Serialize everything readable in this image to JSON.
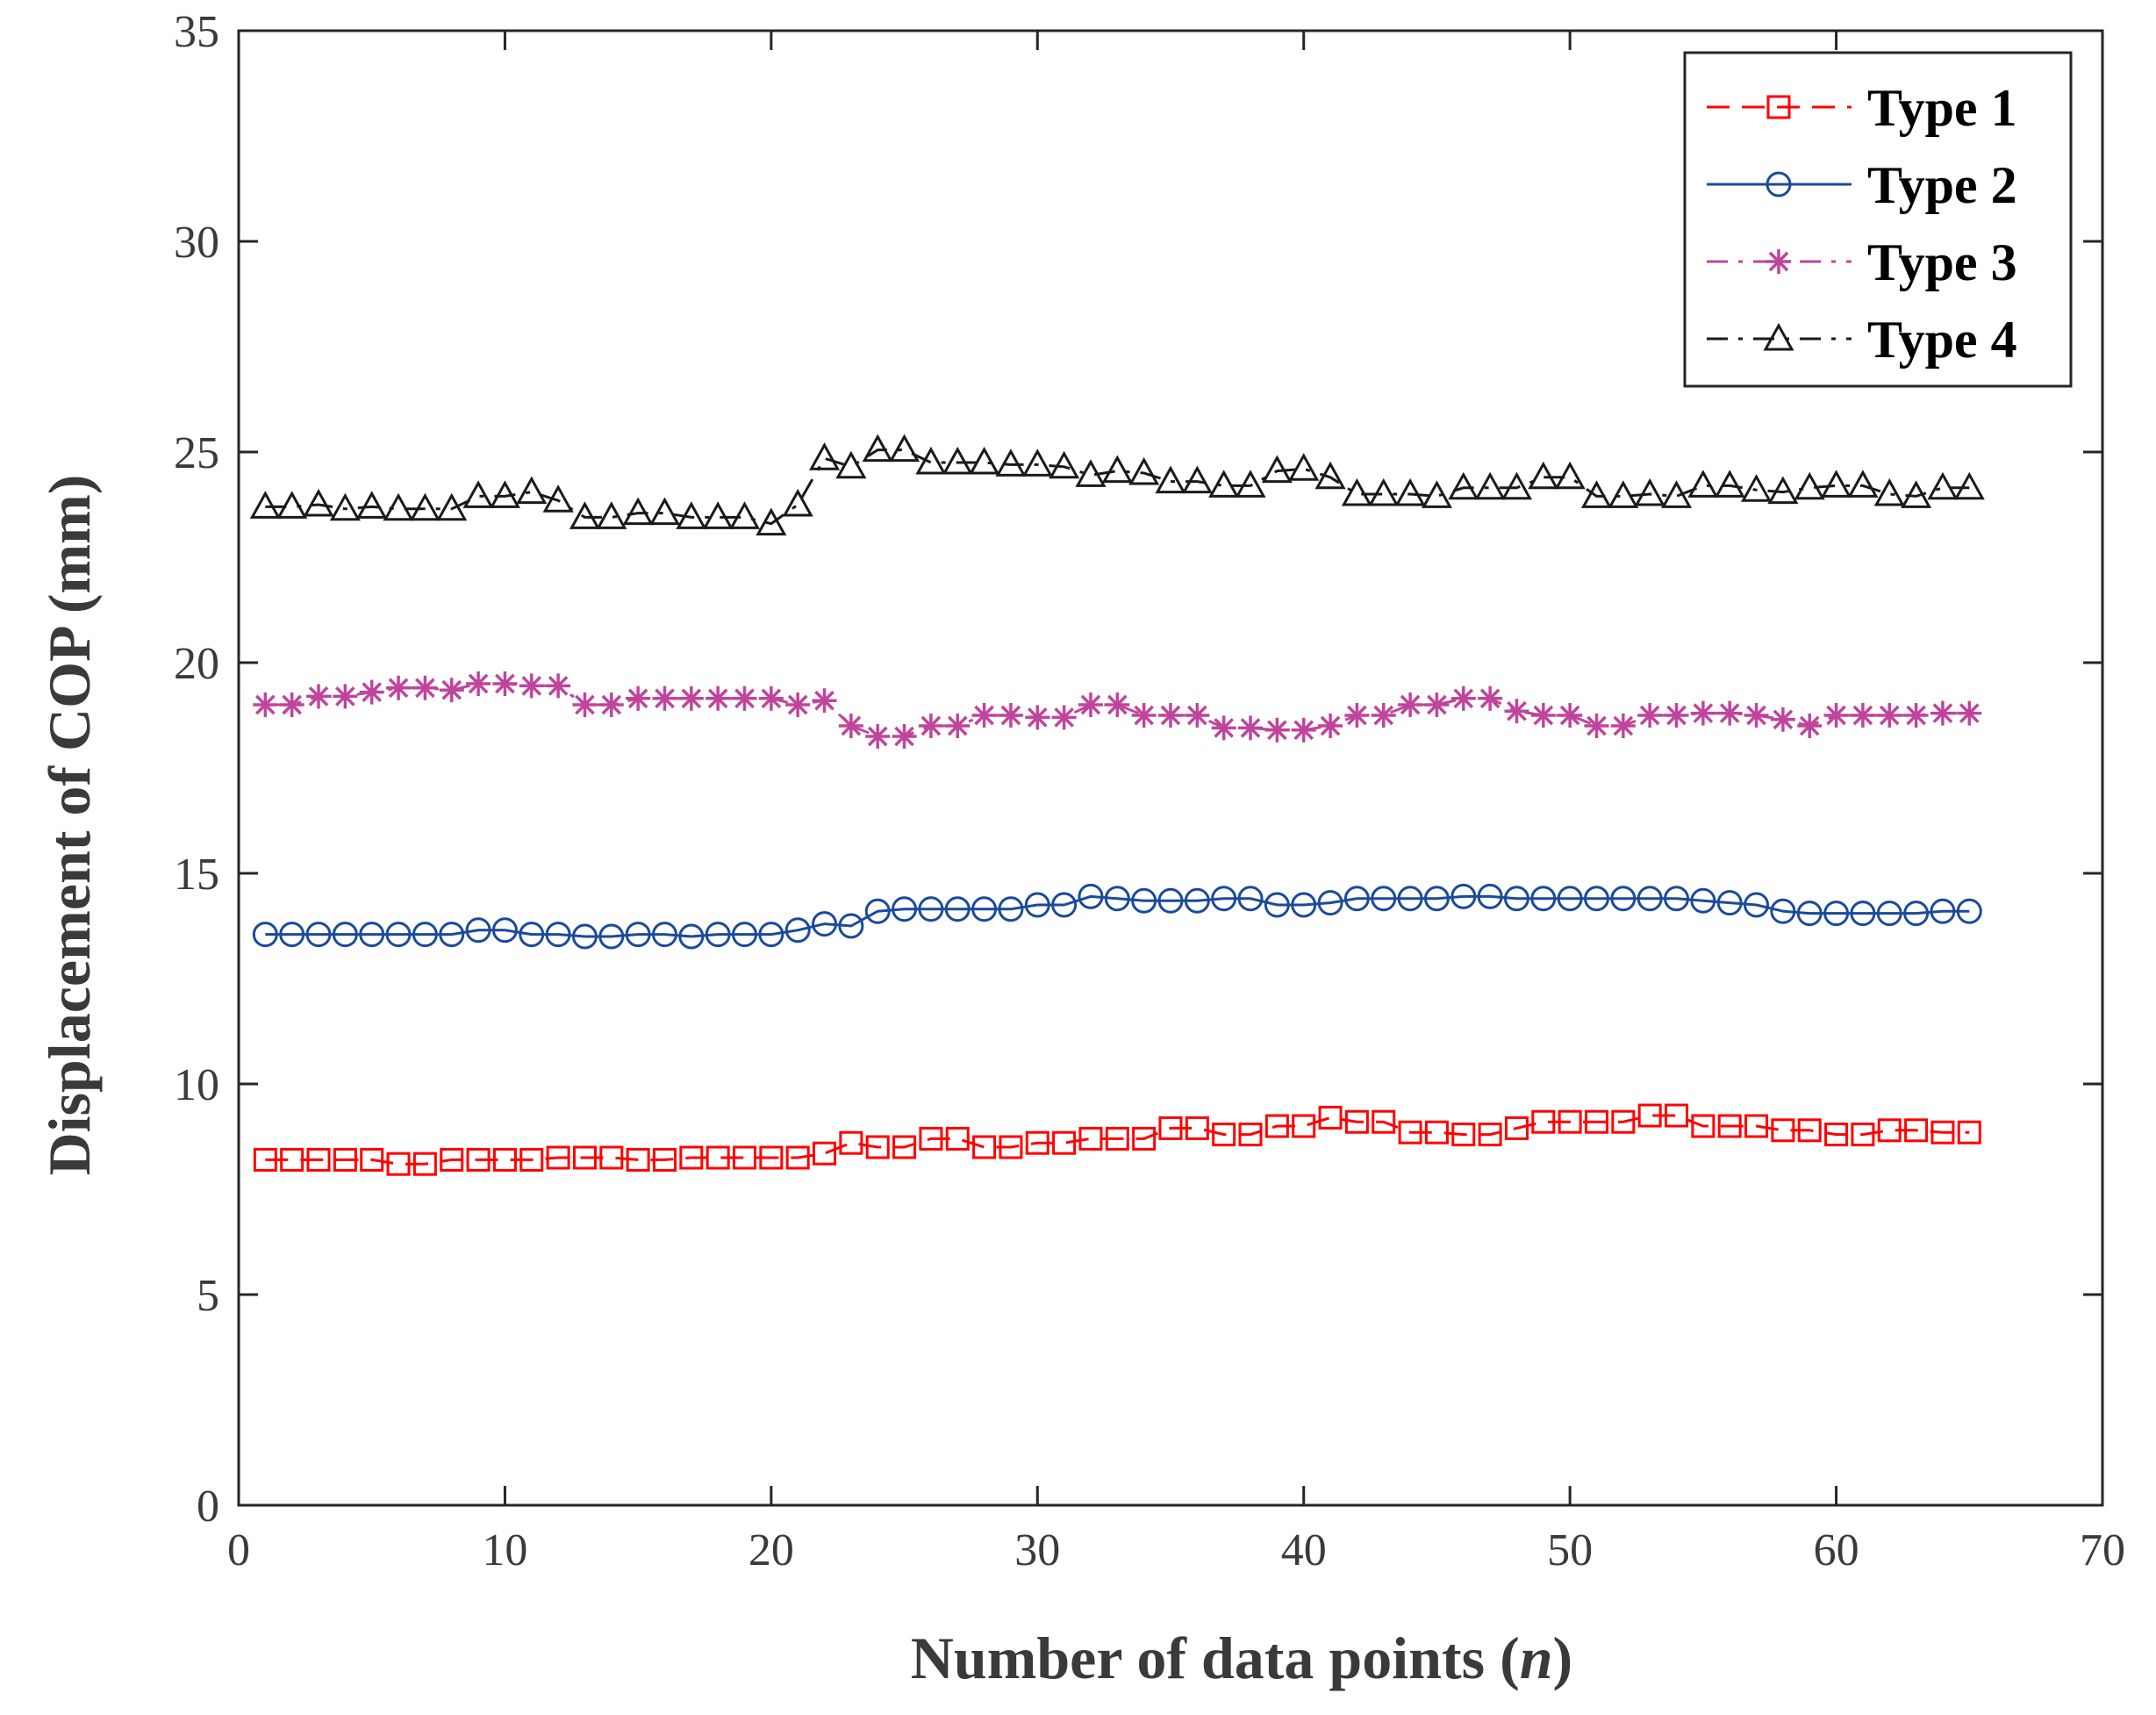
{
  "chart_data": {
    "type": "line",
    "title": "",
    "xlabel": "Number of data points (n)",
    "xlabel_main": "Number of data points (",
    "xlabel_var": "n",
    "xlabel_close": ")",
    "ylabel": "Displacement of COP (mm)",
    "xlim": [
      0,
      70
    ],
    "ylim": [
      0,
      35
    ],
    "xticks": [
      0,
      10,
      20,
      30,
      40,
      50,
      60,
      70
    ],
    "yticks": [
      0,
      5,
      10,
      15,
      20,
      25,
      30,
      35
    ],
    "grid": false,
    "legend_position": "top-right",
    "x": [
      1,
      2,
      3,
      4,
      5,
      6,
      7,
      8,
      9,
      10,
      11,
      12,
      13,
      14,
      15,
      16,
      17,
      18,
      19,
      20,
      21,
      22,
      23,
      24,
      25,
      26,
      27,
      28,
      29,
      30,
      31,
      32,
      33,
      34,
      35,
      36,
      37,
      38,
      39,
      40,
      41,
      42,
      43,
      44,
      45,
      46,
      47,
      48,
      49,
      50,
      51,
      52,
      53,
      54,
      55,
      56,
      57,
      58,
      59,
      60,
      61,
      62,
      63,
      64,
      65
    ],
    "series": [
      {
        "name": "Type 1",
        "color": "#ff0000",
        "marker": "square",
        "line_style": "dashed",
        "values": [
          8.2,
          8.2,
          8.2,
          8.2,
          8.2,
          8.1,
          8.1,
          8.2,
          8.2,
          8.2,
          8.2,
          8.25,
          8.25,
          8.25,
          8.2,
          8.2,
          8.25,
          8.25,
          8.25,
          8.25,
          8.25,
          8.35,
          8.6,
          8.5,
          8.5,
          8.7,
          8.7,
          8.5,
          8.5,
          8.6,
          8.6,
          8.7,
          8.7,
          8.7,
          8.95,
          8.95,
          8.8,
          8.8,
          9.0,
          9.0,
          9.2,
          9.1,
          9.1,
          8.85,
          8.85,
          8.8,
          8.8,
          8.95,
          9.1,
          9.1,
          9.1,
          9.1,
          9.25,
          9.25,
          9.0,
          9.0,
          9.0,
          8.9,
          8.9,
          8.8,
          8.8,
          8.9,
          8.9,
          8.85,
          8.85
        ]
      },
      {
        "name": "Type 2",
        "color": "#1a4a9c",
        "marker": "circle",
        "line_style": "solid",
        "values": [
          13.55,
          13.55,
          13.55,
          13.55,
          13.55,
          13.55,
          13.55,
          13.55,
          13.65,
          13.65,
          13.55,
          13.55,
          13.5,
          13.5,
          13.55,
          13.55,
          13.5,
          13.55,
          13.55,
          13.55,
          13.65,
          13.8,
          13.75,
          14.1,
          14.15,
          14.15,
          14.15,
          14.15,
          14.15,
          14.25,
          14.25,
          14.45,
          14.4,
          14.35,
          14.35,
          14.35,
          14.4,
          14.4,
          14.25,
          14.25,
          14.3,
          14.4,
          14.4,
          14.4,
          14.4,
          14.45,
          14.45,
          14.4,
          14.4,
          14.4,
          14.4,
          14.4,
          14.4,
          14.4,
          14.35,
          14.3,
          14.25,
          14.1,
          14.05,
          14.05,
          14.05,
          14.05,
          14.05,
          14.1,
          14.1
        ]
      },
      {
        "name": "Type 3",
        "color": "#c0449c",
        "marker": "asterisk",
        "line_style": "dashdot",
        "values": [
          19.0,
          19.0,
          19.2,
          19.2,
          19.3,
          19.4,
          19.4,
          19.35,
          19.5,
          19.5,
          19.45,
          19.45,
          19.0,
          19.0,
          19.15,
          19.15,
          19.15,
          19.15,
          19.15,
          19.15,
          19.0,
          19.1,
          18.5,
          18.25,
          18.25,
          18.5,
          18.5,
          18.75,
          18.75,
          18.7,
          18.7,
          19.0,
          19.0,
          18.75,
          18.75,
          18.75,
          18.45,
          18.45,
          18.4,
          18.4,
          18.5,
          18.75,
          18.75,
          19.0,
          19.0,
          19.15,
          19.15,
          18.85,
          18.75,
          18.75,
          18.5,
          18.5,
          18.75,
          18.75,
          18.8,
          18.8,
          18.75,
          18.65,
          18.5,
          18.75,
          18.75,
          18.75,
          18.75,
          18.8,
          18.8
        ]
      },
      {
        "name": "Type 4",
        "color": "#1a1a1a",
        "marker": "triangle",
        "line_style": "dashdot",
        "values": [
          23.7,
          23.7,
          23.75,
          23.65,
          23.7,
          23.65,
          23.65,
          23.65,
          23.95,
          23.95,
          24.05,
          23.85,
          23.45,
          23.45,
          23.55,
          23.55,
          23.45,
          23.45,
          23.45,
          23.3,
          23.75,
          24.85,
          24.65,
          25.05,
          25.05,
          24.75,
          24.75,
          24.75,
          24.7,
          24.7,
          24.65,
          24.45,
          24.55,
          24.5,
          24.3,
          24.3,
          24.2,
          24.2,
          24.55,
          24.6,
          24.4,
          24.0,
          24.0,
          24.0,
          23.95,
          24.15,
          24.15,
          24.15,
          24.4,
          24.4,
          23.95,
          23.95,
          24.0,
          23.95,
          24.2,
          24.2,
          24.1,
          24.05,
          24.15,
          24.2,
          24.2,
          24.0,
          23.95,
          24.15,
          24.15
        ]
      }
    ]
  }
}
